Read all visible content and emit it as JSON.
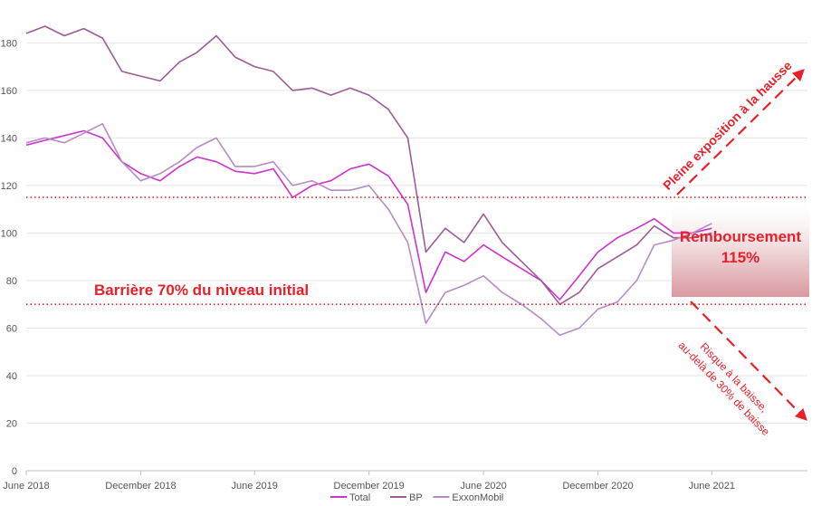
{
  "chart_data": {
    "type": "line",
    "x_range": [
      "2018-06-01",
      "2021-11-01"
    ],
    "ylim": [
      0,
      195
    ],
    "y_ticks": [
      0,
      20,
      40,
      60,
      80,
      100,
      120,
      140,
      160,
      180
    ],
    "x_ticks": [
      {
        "date": "2018-06-01",
        "label": "June 2018"
      },
      {
        "date": "2018-12-01",
        "label": "December 2018"
      },
      {
        "date": "2019-06-01",
        "label": "June 2019"
      },
      {
        "date": "2019-12-01",
        "label": "December 2019"
      },
      {
        "date": "2020-06-01",
        "label": "June 2020"
      },
      {
        "date": "2020-12-01",
        "label": "December 2020"
      },
      {
        "date": "2021-06-01",
        "label": "June 2021"
      }
    ],
    "grid": "horizontal",
    "legend_position": "bottom",
    "series": [
      {
        "name": "Total",
        "color": "#cc33cc",
        "points": [
          [
            "2018-06-01",
            137
          ],
          [
            "2018-07-01",
            139
          ],
          [
            "2018-08-01",
            141
          ],
          [
            "2018-09-01",
            143
          ],
          [
            "2018-10-01",
            140
          ],
          [
            "2018-11-01",
            130
          ],
          [
            "2018-12-01",
            125
          ],
          [
            "2019-01-01",
            122
          ],
          [
            "2019-02-01",
            128
          ],
          [
            "2019-03-01",
            132
          ],
          [
            "2019-04-01",
            130
          ],
          [
            "2019-05-01",
            126
          ],
          [
            "2019-06-01",
            125
          ],
          [
            "2019-07-01",
            127
          ],
          [
            "2019-08-01",
            115
          ],
          [
            "2019-09-01",
            120
          ],
          [
            "2019-10-01",
            122
          ],
          [
            "2019-11-01",
            127
          ],
          [
            "2019-12-01",
            129
          ],
          [
            "2020-01-01",
            124
          ],
          [
            "2020-02-01",
            112
          ],
          [
            "2020-03-01",
            75
          ],
          [
            "2020-04-01",
            92
          ],
          [
            "2020-05-01",
            88
          ],
          [
            "2020-06-01",
            95
          ],
          [
            "2020-07-01",
            90
          ],
          [
            "2020-08-01",
            85
          ],
          [
            "2020-09-01",
            80
          ],
          [
            "2020-10-01",
            72
          ],
          [
            "2020-11-01",
            82
          ],
          [
            "2020-12-01",
            92
          ],
          [
            "2021-01-01",
            98
          ],
          [
            "2021-02-01",
            102
          ],
          [
            "2021-03-01",
            106
          ],
          [
            "2021-04-01",
            100
          ],
          [
            "2021-05-01",
            100
          ],
          [
            "2021-06-01",
            102
          ]
        ]
      },
      {
        "name": "BP",
        "color": "#9c5c94",
        "points": [
          [
            "2018-06-01",
            184
          ],
          [
            "2018-07-01",
            187
          ],
          [
            "2018-08-01",
            183
          ],
          [
            "2018-09-01",
            186
          ],
          [
            "2018-10-01",
            182
          ],
          [
            "2018-11-01",
            168
          ],
          [
            "2018-12-01",
            166
          ],
          [
            "2019-01-01",
            164
          ],
          [
            "2019-02-01",
            172
          ],
          [
            "2019-03-01",
            176
          ],
          [
            "2019-04-01",
            183
          ],
          [
            "2019-05-01",
            174
          ],
          [
            "2019-06-01",
            170
          ],
          [
            "2019-07-01",
            168
          ],
          [
            "2019-08-01",
            160
          ],
          [
            "2019-09-01",
            161
          ],
          [
            "2019-10-01",
            158
          ],
          [
            "2019-11-01",
            161
          ],
          [
            "2019-12-01",
            158
          ],
          [
            "2020-01-01",
            152
          ],
          [
            "2020-02-01",
            140
          ],
          [
            "2020-03-01",
            92
          ],
          [
            "2020-04-01",
            102
          ],
          [
            "2020-05-01",
            96
          ],
          [
            "2020-06-01",
            108
          ],
          [
            "2020-07-01",
            96
          ],
          [
            "2020-08-01",
            88
          ],
          [
            "2020-09-01",
            80
          ],
          [
            "2020-10-01",
            70
          ],
          [
            "2020-11-01",
            75
          ],
          [
            "2020-12-01",
            85
          ],
          [
            "2021-01-01",
            90
          ],
          [
            "2021-02-01",
            95
          ],
          [
            "2021-03-01",
            103
          ],
          [
            "2021-04-01",
            98
          ],
          [
            "2021-05-01",
            98
          ],
          [
            "2021-06-01",
            100
          ]
        ]
      },
      {
        "name": "ExxonMobil",
        "color": "#b58cc4",
        "points": [
          [
            "2018-06-01",
            138
          ],
          [
            "2018-07-01",
            140
          ],
          [
            "2018-08-01",
            138
          ],
          [
            "2018-09-01",
            142
          ],
          [
            "2018-10-01",
            146
          ],
          [
            "2018-11-01",
            130
          ],
          [
            "2018-12-01",
            122
          ],
          [
            "2019-01-01",
            125
          ],
          [
            "2019-02-01",
            130
          ],
          [
            "2019-03-01",
            136
          ],
          [
            "2019-04-01",
            140
          ],
          [
            "2019-05-01",
            128
          ],
          [
            "2019-06-01",
            128
          ],
          [
            "2019-07-01",
            130
          ],
          [
            "2019-08-01",
            120
          ],
          [
            "2019-09-01",
            122
          ],
          [
            "2019-10-01",
            118
          ],
          [
            "2019-11-01",
            118
          ],
          [
            "2019-12-01",
            120
          ],
          [
            "2020-01-01",
            110
          ],
          [
            "2020-02-01",
            96
          ],
          [
            "2020-03-01",
            62
          ],
          [
            "2020-04-01",
            75
          ],
          [
            "2020-05-01",
            78
          ],
          [
            "2020-06-01",
            82
          ],
          [
            "2020-07-01",
            75
          ],
          [
            "2020-08-01",
            70
          ],
          [
            "2020-09-01",
            64
          ],
          [
            "2020-10-01",
            57
          ],
          [
            "2020-11-01",
            60
          ],
          [
            "2020-12-01",
            68
          ],
          [
            "2021-01-01",
            71
          ],
          [
            "2021-02-01",
            80
          ],
          [
            "2021-03-01",
            95
          ],
          [
            "2021-04-01",
            97
          ],
          [
            "2021-05-01",
            100
          ],
          [
            "2021-06-01",
            104
          ]
        ]
      }
    ],
    "reference_lines": [
      {
        "y": 115,
        "color": "#e8202a",
        "style": "dotted"
      },
      {
        "y": 70,
        "color": "#e8202a",
        "style": "dotted"
      }
    ],
    "annotations": {
      "barrier": "Barrière 70% du niveau initial",
      "redemption_line1": "Remboursement",
      "redemption_line2": "115%",
      "upside": "Pleine exposition à la hausse",
      "downside_line1": "Risque à la baisse,",
      "downside_line2": "au-delà de 30% de baisse"
    }
  }
}
